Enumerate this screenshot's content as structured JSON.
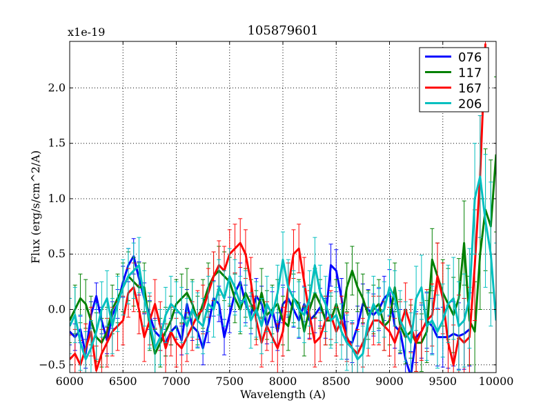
{
  "chart_data": {
    "type": "line",
    "title": "105879601",
    "xlabel": "Wavelength (A)",
    "ylabel": "Flux (erg/s/cm^2/A)",
    "offset_text": "x1e-19",
    "xlim": [
      6000,
      10000
    ],
    "ylim": [
      -0.57,
      2.42
    ],
    "grid": true,
    "legend_position": "top-right",
    "x_ticks": [
      6000,
      6500,
      7000,
      7500,
      8000,
      8500,
      9000,
      9500,
      10000
    ],
    "x_tick_labels": [
      "6000",
      "6500",
      "7000",
      "7500",
      "8000",
      "8500",
      "9000",
      "9500",
      "10000"
    ],
    "y_ticks": [
      -0.5,
      0.0,
      0.5,
      1.0,
      1.5,
      2.0
    ],
    "y_tick_labels": [
      "−0.5",
      "0.0",
      "0.5",
      "1.0",
      "1.5",
      "2.0"
    ],
    "series": [
      {
        "name": "076",
        "color": "#0000ff",
        "x": [
          6000,
          6050,
          6100,
          6150,
          6200,
          6250,
          6300,
          6350,
          6400,
          6450,
          6500,
          6550,
          6600,
          6650,
          6700,
          6750,
          6800,
          6850,
          6900,
          6950,
          7000,
          7050,
          7100,
          7150,
          7200,
          7250,
          7300,
          7350,
          7400,
          7450,
          7500,
          7550,
          7600,
          7650,
          7700,
          7750,
          7800,
          7850,
          7900,
          7950,
          8000,
          8050,
          8100,
          8150,
          8200,
          8250,
          8300,
          8350,
          8400,
          8450,
          8500,
          8550,
          8600,
          8650,
          8700,
          8750,
          8800,
          8850,
          8900,
          8950,
          9000,
          9050,
          9100,
          9150,
          9200,
          9250,
          9300,
          9350,
          9400,
          9450,
          9500,
          9550,
          9600,
          9650,
          9700,
          9750
        ],
        "y": [
          -0.2,
          -0.25,
          -0.18,
          -0.4,
          -0.05,
          0.12,
          -0.1,
          -0.28,
          -0.05,
          0.05,
          0.25,
          0.4,
          0.48,
          0.28,
          0.1,
          -0.05,
          -0.2,
          -0.25,
          -0.3,
          -0.2,
          -0.15,
          -0.28,
          0.05,
          -0.15,
          -0.2,
          -0.35,
          -0.15,
          0.1,
          0.05,
          -0.25,
          -0.05,
          0.15,
          0.25,
          0.05,
          -0.05,
          0.12,
          0.05,
          -0.15,
          0.0,
          -0.2,
          0.05,
          0.1,
          0.0,
          -0.1,
          0.05,
          -0.1,
          -0.05,
          0.02,
          -0.08,
          0.4,
          0.35,
          0.1,
          -0.28,
          -0.3,
          -0.15,
          0.05,
          0.0,
          -0.05,
          0.0,
          0.1,
          0.15,
          -0.15,
          -0.2,
          -0.45,
          -0.6,
          -0.25,
          -0.2,
          -0.1,
          -0.15,
          -0.25,
          -0.25,
          -0.25,
          -0.22,
          -0.24,
          -0.22,
          -0.18
        ],
        "err": [
          0.12,
          0.12,
          0.12,
          0.13,
          0.12,
          0.12,
          0.12,
          0.12,
          0.12,
          0.13,
          0.14,
          0.15,
          0.16,
          0.15,
          0.14,
          0.13,
          0.12,
          0.12,
          0.12,
          0.12,
          0.12,
          0.13,
          0.13,
          0.13,
          0.14,
          0.15,
          0.15,
          0.16,
          0.16,
          0.16,
          0.16,
          0.17,
          0.17,
          0.17,
          0.17,
          0.16,
          0.16,
          0.16,
          0.16,
          0.17,
          0.17,
          0.17,
          0.16,
          0.16,
          0.16,
          0.16,
          0.16,
          0.17,
          0.18,
          0.19,
          0.19,
          0.18,
          0.17,
          0.18,
          0.18,
          0.18,
          0.18,
          0.19,
          0.19,
          0.2,
          0.21,
          0.2,
          0.2,
          0.21,
          0.22,
          0.23,
          0.24,
          0.25,
          0.25,
          0.26,
          0.27,
          0.28,
          0.29,
          0.3,
          0.32,
          0.33
        ]
      },
      {
        "name": "117",
        "color": "#008000",
        "x": [
          6000,
          6050,
          6100,
          6150,
          6200,
          6250,
          6300,
          6350,
          6400,
          6450,
          6500,
          6550,
          6600,
          6650,
          6700,
          6750,
          6800,
          6850,
          6900,
          6950,
          7000,
          7050,
          7100,
          7150,
          7200,
          7250,
          7300,
          7350,
          7400,
          7450,
          7500,
          7550,
          7600,
          7650,
          7700,
          7750,
          7800,
          7850,
          7900,
          7950,
          8000,
          8050,
          8100,
          8150,
          8200,
          8250,
          8300,
          8350,
          8400,
          8450,
          8500,
          8550,
          8600,
          8650,
          8700,
          8750,
          8800,
          8850,
          8900,
          8950,
          9000,
          9050,
          9100,
          9150,
          9200,
          9250,
          9300,
          9350,
          9400,
          9450,
          9500,
          9550,
          9600,
          9650,
          9700,
          9750,
          9800,
          9850,
          9900,
          9950,
          10000
        ],
        "y": [
          -0.1,
          0.0,
          0.1,
          0.05,
          -0.1,
          -0.25,
          -0.3,
          -0.2,
          0.0,
          0.1,
          0.2,
          0.3,
          0.25,
          0.2,
          0.2,
          -0.15,
          -0.4,
          -0.3,
          -0.2,
          -0.1,
          0.05,
          0.1,
          0.15,
          0.05,
          -0.1,
          0.05,
          0.2,
          0.3,
          0.35,
          0.3,
          0.25,
          0.1,
          0.0,
          0.15,
          0.05,
          -0.05,
          0.15,
          -0.05,
          0.0,
          0.05,
          -0.1,
          -0.15,
          0.1,
          0.05,
          -0.2,
          0.0,
          0.15,
          0.05,
          -0.1,
          -0.1,
          0.05,
          -0.1,
          0.2,
          0.35,
          0.2,
          0.1,
          -0.05,
          0.0,
          0.05,
          -0.15,
          -0.1,
          0.2,
          -0.15,
          -0.25,
          -0.2,
          -0.3,
          -0.3,
          -0.2,
          0.45,
          0.3,
          0.15,
          0.05,
          -0.05,
          0.1,
          0.6,
          -0.1,
          -0.2,
          0.5,
          0.9,
          0.75,
          1.4
        ],
        "err": [
          0.2,
          0.22,
          0.22,
          0.22,
          0.22,
          0.22,
          0.22,
          0.22,
          0.22,
          0.22,
          0.22,
          0.22,
          0.22,
          0.22,
          0.22,
          0.22,
          0.22,
          0.22,
          0.22,
          0.22,
          0.22,
          0.22,
          0.22,
          0.22,
          0.22,
          0.22,
          0.22,
          0.22,
          0.22,
          0.22,
          0.22,
          0.22,
          0.22,
          0.22,
          0.22,
          0.22,
          0.22,
          0.22,
          0.22,
          0.22,
          0.22,
          0.22,
          0.22,
          0.22,
          0.22,
          0.22,
          0.22,
          0.22,
          0.22,
          0.22,
          0.22,
          0.22,
          0.22,
          0.22,
          0.22,
          0.22,
          0.22,
          0.22,
          0.22,
          0.22,
          0.22,
          0.22,
          0.24,
          0.24,
          0.24,
          0.26,
          0.26,
          0.28,
          0.28,
          0.3,
          0.3,
          0.32,
          0.34,
          0.36,
          0.38,
          0.4,
          0.45,
          0.5,
          0.55,
          0.6,
          0.7
        ]
      },
      {
        "name": "167",
        "color": "#ff0000",
        "x": [
          6000,
          6050,
          6100,
          6150,
          6200,
          6250,
          6300,
          6350,
          6400,
          6450,
          6500,
          6550,
          6600,
          6650,
          6700,
          6750,
          6800,
          6850,
          6900,
          6950,
          7000,
          7050,
          7100,
          7150,
          7200,
          7250,
          7300,
          7350,
          7400,
          7450,
          7500,
          7550,
          7600,
          7650,
          7700,
          7750,
          7800,
          7850,
          7900,
          7950,
          8000,
          8050,
          8100,
          8150,
          8200,
          8250,
          8300,
          8350,
          8400,
          8450,
          8500,
          8550,
          8600,
          8650,
          8700,
          8750,
          8800,
          8850,
          8900,
          8950,
          9000,
          9050,
          9100,
          9150,
          9200,
          9250,
          9300,
          9350,
          9400,
          9450,
          9500,
          9550,
          9600,
          9650,
          9700,
          9750,
          9800,
          9850,
          9900
        ],
        "y": [
          -0.45,
          -0.4,
          -0.5,
          -0.35,
          -0.2,
          -0.55,
          -0.4,
          -0.3,
          -0.2,
          -0.15,
          -0.1,
          0.15,
          0.2,
          0.0,
          -0.25,
          -0.1,
          0.05,
          -0.15,
          -0.35,
          -0.2,
          -0.3,
          -0.35,
          -0.25,
          -0.15,
          -0.05,
          0.0,
          0.15,
          0.3,
          0.4,
          0.35,
          0.5,
          0.55,
          0.6,
          0.5,
          0.25,
          -0.1,
          -0.3,
          -0.15,
          -0.25,
          -0.35,
          -0.2,
          0.2,
          0.5,
          0.55,
          0.25,
          -0.05,
          -0.3,
          -0.25,
          -0.1,
          -0.05,
          -0.2,
          -0.1,
          -0.25,
          -0.35,
          -0.4,
          -0.3,
          -0.2,
          -0.1,
          -0.1,
          -0.15,
          -0.2,
          -0.3,
          -0.15,
          0.0,
          -0.15,
          -0.3,
          -0.2,
          -0.1,
          -0.05,
          0.3,
          0.1,
          -0.3,
          -0.5,
          -0.25,
          -0.3,
          -0.25,
          0.4,
          1.2,
          2.4
        ],
        "err": [
          0.22,
          0.22,
          0.22,
          0.22,
          0.22,
          0.22,
          0.22,
          0.22,
          0.22,
          0.22,
          0.22,
          0.22,
          0.22,
          0.22,
          0.22,
          0.22,
          0.22,
          0.22,
          0.22,
          0.22,
          0.22,
          0.22,
          0.22,
          0.22,
          0.22,
          0.22,
          0.22,
          0.22,
          0.22,
          0.22,
          0.22,
          0.22,
          0.22,
          0.22,
          0.22,
          0.22,
          0.22,
          0.22,
          0.22,
          0.22,
          0.22,
          0.22,
          0.22,
          0.22,
          0.22,
          0.22,
          0.22,
          0.22,
          0.22,
          0.22,
          0.22,
          0.22,
          0.22,
          0.22,
          0.22,
          0.22,
          0.22,
          0.22,
          0.22,
          0.22,
          0.22,
          0.22,
          0.22,
          0.24,
          0.24,
          0.26,
          0.26,
          0.28,
          0.28,
          0.3,
          0.32,
          0.34,
          0.36,
          0.38,
          0.4,
          0.45,
          0.5,
          0.55,
          0.6
        ]
      },
      {
        "name": "206",
        "color": "#00bfbf",
        "x": [
          6000,
          6050,
          6100,
          6150,
          6200,
          6250,
          6300,
          6350,
          6400,
          6450,
          6500,
          6550,
          6600,
          6650,
          6700,
          6750,
          6800,
          6850,
          6900,
          6950,
          7000,
          7050,
          7100,
          7150,
          7200,
          7250,
          7300,
          7350,
          7400,
          7450,
          7500,
          7550,
          7600,
          7650,
          7700,
          7750,
          7800,
          7850,
          7900,
          7950,
          8000,
          8050,
          8100,
          8150,
          8200,
          8250,
          8300,
          8350,
          8400,
          8450,
          8500,
          8550,
          8600,
          8650,
          8700,
          8750,
          8800,
          8850,
          8900,
          8950,
          9000,
          9050,
          9100,
          9150,
          9200,
          9250,
          9300,
          9350,
          9400,
          9450,
          9500,
          9550,
          9600,
          9650,
          9700,
          9750,
          9800,
          9850,
          9900,
          9950,
          10000
        ],
        "y": [
          -0.15,
          -0.05,
          -0.3,
          -0.45,
          -0.35,
          -0.2,
          0.0,
          0.1,
          -0.15,
          0.05,
          0.2,
          0.3,
          0.35,
          0.4,
          0.1,
          -0.1,
          -0.35,
          -0.25,
          -0.05,
          0.05,
          0.0,
          -0.05,
          -0.15,
          0.0,
          -0.1,
          -0.15,
          0.05,
          0.0,
          0.2,
          0.1,
          0.3,
          0.2,
          0.05,
          0.1,
          -0.1,
          0.0,
          -0.15,
          0.05,
          -0.05,
          0.15,
          0.45,
          0.2,
          0.1,
          0.0,
          -0.05,
          0.1,
          0.4,
          0.15,
          0.05,
          -0.1,
          -0.05,
          -0.2,
          -0.3,
          -0.35,
          -0.45,
          -0.4,
          -0.1,
          0.05,
          -0.05,
          0.0,
          0.2,
          0.1,
          -0.1,
          -0.2,
          -0.3,
          0.1,
          0.2,
          -0.15,
          -0.1,
          -0.2,
          -0.1,
          0.05,
          0.1,
          -0.15,
          -0.1,
          0.1,
          1.0,
          1.2,
          0.8,
          0.5,
          -0.1
        ],
        "err": [
          0.25,
          0.25,
          0.25,
          0.25,
          0.25,
          0.25,
          0.25,
          0.25,
          0.25,
          0.25,
          0.25,
          0.25,
          0.25,
          0.25,
          0.25,
          0.25,
          0.25,
          0.25,
          0.25,
          0.25,
          0.25,
          0.25,
          0.25,
          0.25,
          0.25,
          0.25,
          0.25,
          0.25,
          0.25,
          0.25,
          0.25,
          0.25,
          0.25,
          0.25,
          0.25,
          0.25,
          0.25,
          0.25,
          0.25,
          0.25,
          0.25,
          0.25,
          0.25,
          0.25,
          0.25,
          0.25,
          0.25,
          0.25,
          0.25,
          0.25,
          0.25,
          0.25,
          0.25,
          0.25,
          0.25,
          0.25,
          0.25,
          0.25,
          0.25,
          0.25,
          0.25,
          0.25,
          0.27,
          0.27,
          0.27,
          0.29,
          0.29,
          0.31,
          0.31,
          0.33,
          0.33,
          0.35,
          0.37,
          0.4,
          0.42,
          0.45,
          0.5,
          0.55,
          0.6,
          0.65,
          0.7
        ]
      }
    ]
  }
}
